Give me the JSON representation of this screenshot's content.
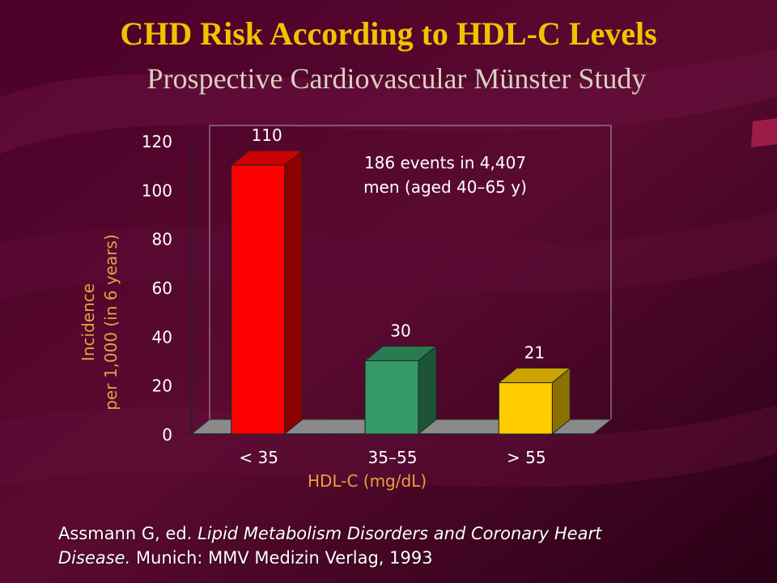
{
  "slide": {
    "title": "CHD Risk According to HDL-C Levels",
    "subtitle": "Prospective Cardiovascular Münster Study",
    "annotation_line1": "186 events in 4,407",
    "annotation_line2": "men (aged 40–65 y)",
    "citation_author": "Assmann G, ed.",
    "citation_title_part1": "Lipid Metabolism Disorders and Coronary Heart",
    "citation_title_part2": "Disease.",
    "citation_publisher": "Munich: MMV Medizin Verlag, 1993"
  },
  "colors": {
    "background": "#3a0020",
    "title": "#f2c200",
    "subtitle": "#d8d0c0",
    "axis_label": "#e8a040",
    "text": "#ffffff",
    "bar_lt35": "#ff0000",
    "bar_35_55": "#339966",
    "bar_gt55": "#ffcc00"
  },
  "chart_data": {
    "type": "bar",
    "categories": [
      "< 35",
      "35–55",
      "> 55"
    ],
    "values": [
      110,
      30,
      21
    ],
    "bar_colors": [
      "#ff0000",
      "#339966",
      "#ffcc00"
    ],
    "data_labels": [
      "110",
      "30",
      "21"
    ],
    "xlabel": "HDL-C (mg/dL)",
    "ylabel_line1": "Incidence",
    "ylabel_line2": "per 1,000 (in 6 years)",
    "ylim": [
      0,
      120
    ],
    "yticks": [
      "0",
      "20",
      "40",
      "60",
      "80",
      "100",
      "120"
    ],
    "grid": false,
    "style": "3d"
  }
}
